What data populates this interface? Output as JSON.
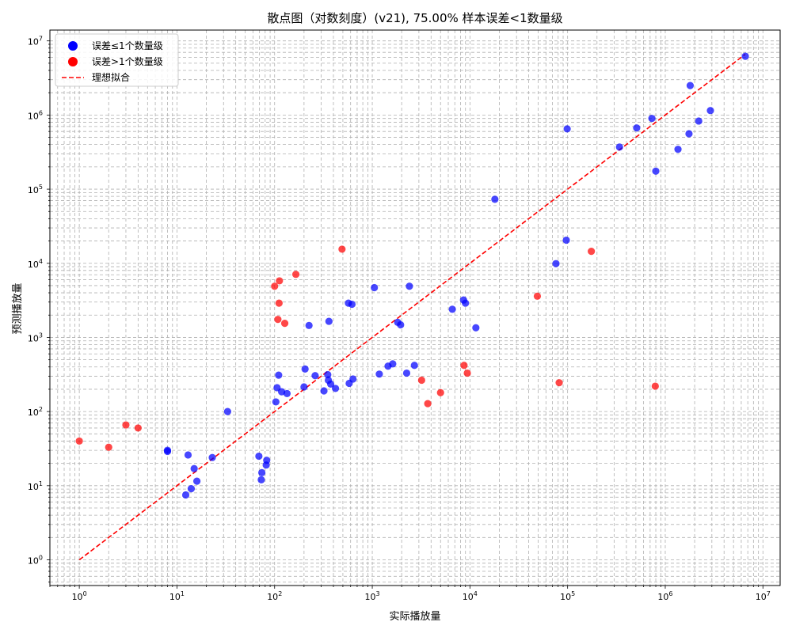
{
  "chart_data": {
    "type": "scatter",
    "title": "散点图（对数刻度）(v21), 75.00% 样本误差<1数量级",
    "xlabel": "实际播放量",
    "ylabel": "预测播放量",
    "x_scale": "log",
    "y_scale": "log",
    "xlim": [
      0.5,
      15000000
    ],
    "ylim": [
      0.45,
      14000000
    ],
    "grid": true,
    "legend_position": "upper-left",
    "x_tick_labels": [
      {
        "base": "10",
        "exp": "0",
        "value": 1
      },
      {
        "base": "10",
        "exp": "1",
        "value": 10
      },
      {
        "base": "10",
        "exp": "2",
        "value": 100
      },
      {
        "base": "10",
        "exp": "3",
        "value": 1000
      },
      {
        "base": "10",
        "exp": "4",
        "value": 10000
      },
      {
        "base": "10",
        "exp": "5",
        "value": 100000
      },
      {
        "base": "10",
        "exp": "6",
        "value": 1000000
      },
      {
        "base": "10",
        "exp": "7",
        "value": 10000000
      }
    ],
    "y_tick_labels": [
      {
        "base": "10",
        "exp": "0",
        "value": 1
      },
      {
        "base": "10",
        "exp": "1",
        "value": 10
      },
      {
        "base": "10",
        "exp": "2",
        "value": 100
      },
      {
        "base": "10",
        "exp": "3",
        "value": 1000
      },
      {
        "base": "10",
        "exp": "4",
        "value": 10000
      },
      {
        "base": "10",
        "exp": "5",
        "value": 100000
      },
      {
        "base": "10",
        "exp": "6",
        "value": 1000000
      },
      {
        "base": "10",
        "exp": "7",
        "value": 10000000
      }
    ],
    "series": [
      {
        "name": "误差≤1个数量级",
        "color": "#0000ff",
        "points": [
          [
            8,
            29
          ],
          [
            8,
            30
          ],
          [
            12.3,
            7.5
          ],
          [
            13,
            26
          ],
          [
            14,
            9.1
          ],
          [
            15,
            17
          ],
          [
            16,
            11.5
          ],
          [
            23,
            24
          ],
          [
            33,
            100
          ],
          [
            69,
            25
          ],
          [
            73,
            12
          ],
          [
            74,
            15
          ],
          [
            82,
            19
          ],
          [
            83,
            22
          ],
          [
            103,
            135
          ],
          [
            106,
            210
          ],
          [
            110,
            310
          ],
          [
            118,
            185
          ],
          [
            134,
            175
          ],
          [
            200,
            215
          ],
          [
            205,
            375
          ],
          [
            225,
            1450
          ],
          [
            260,
            305
          ],
          [
            320,
            190
          ],
          [
            350,
            315
          ],
          [
            355,
            265
          ],
          [
            360,
            1650
          ],
          [
            375,
            235
          ],
          [
            420,
            205
          ],
          [
            570,
            2900
          ],
          [
            580,
            240
          ],
          [
            620,
            2800
          ],
          [
            635,
            275
          ],
          [
            1050,
            4700
          ],
          [
            1180,
            320
          ],
          [
            1450,
            410
          ],
          [
            1620,
            440
          ],
          [
            1820,
            1600
          ],
          [
            1950,
            1480
          ],
          [
            2250,
            330
          ],
          [
            2400,
            4900
          ],
          [
            2700,
            420
          ],
          [
            6600,
            2400
          ],
          [
            8600,
            3200
          ],
          [
            9000,
            2900
          ],
          [
            11500,
            1350
          ],
          [
            18000,
            73000
          ],
          [
            76000,
            9900
          ],
          [
            97000,
            20500
          ],
          [
            99000,
            650000
          ],
          [
            340000,
            370000
          ],
          [
            510000,
            670000
          ],
          [
            730000,
            900000
          ],
          [
            800000,
            175000
          ],
          [
            1350000,
            345000
          ],
          [
            1750000,
            560000
          ],
          [
            1800000,
            2500000
          ],
          [
            2200000,
            830000
          ],
          [
            2900000,
            1150000
          ],
          [
            6600000,
            6200000
          ]
        ]
      },
      {
        "name": "误差>1个数量级",
        "color": "#ff0000",
        "points": [
          [
            1,
            40
          ],
          [
            2,
            33
          ],
          [
            3,
            66
          ],
          [
            4,
            60
          ],
          [
            100,
            4900
          ],
          [
            108,
            1750
          ],
          [
            111,
            2900
          ],
          [
            112,
            5800
          ],
          [
            127,
            1550
          ],
          [
            165,
            7100
          ],
          [
            490,
            15500
          ],
          [
            3200,
            265
          ],
          [
            3700,
            128
          ],
          [
            5000,
            180
          ],
          [
            8700,
            420
          ],
          [
            9400,
            330
          ],
          [
            49000,
            3600
          ],
          [
            82000,
            245
          ],
          [
            175000,
            14500
          ],
          [
            790000,
            220
          ]
        ]
      }
    ],
    "reference_line": {
      "name": "理想拟合",
      "color": "#ff0000",
      "style": "dashed",
      "from": [
        1,
        1
      ],
      "to": [
        6600000,
        6600000
      ]
    }
  }
}
